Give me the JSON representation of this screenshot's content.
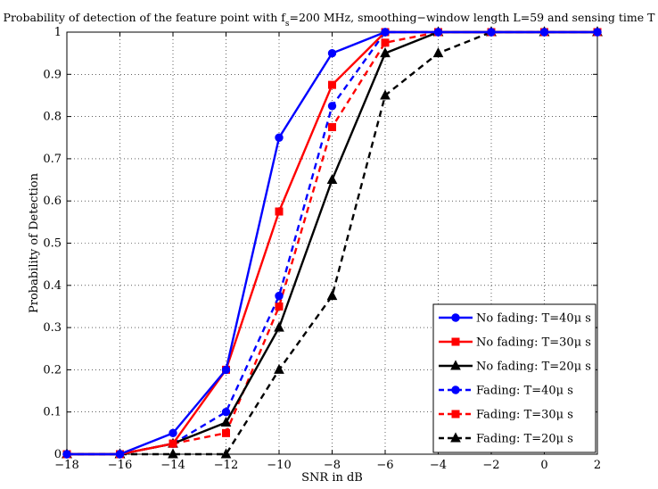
{
  "chart_data": {
    "type": "line",
    "title": "Probability of detection of the feature point with f",
    "title_subscript": "s",
    "title_rest": "=200 MHz, smoothing−window length L=59 and sensing time T",
    "xlabel": "SNR in dB",
    "ylabel": "Probability of Detection",
    "xlim": [
      -18,
      2
    ],
    "ylim": [
      0,
      1
    ],
    "xticks": [
      -18,
      -16,
      -14,
      -12,
      -10,
      -8,
      -6,
      -4,
      -2,
      0,
      2
    ],
    "xtick_labels": [
      "−18",
      "−16",
      "−14",
      "−12",
      "−10",
      "−8",
      "−6",
      "−4",
      "−2",
      "0",
      "2"
    ],
    "yticks": [
      0,
      0.1,
      0.2,
      0.3,
      0.4,
      0.5,
      0.6,
      0.7,
      0.8,
      0.9,
      1
    ],
    "ytick_labels": [
      "0",
      "0.1",
      "0.2",
      "0.3",
      "0.4",
      "0.5",
      "0.6",
      "0.7",
      "0.8",
      "0.9",
      "1"
    ],
    "grid": true,
    "legend_position": "bottom-right",
    "x": [
      -18,
      -16,
      -14,
      -12,
      -10,
      -8,
      -6,
      -4,
      -2,
      0,
      2
    ],
    "series": [
      {
        "name": "No fading: T=40μ s",
        "color": "#0000ff",
        "dash": "solid",
        "marker": "circle",
        "values": [
          0,
          0,
          0.05,
          0.2,
          0.75,
          0.95,
          1,
          1,
          1,
          1,
          1
        ]
      },
      {
        "name": "No fading: T=30μ s",
        "color": "#ff0000",
        "dash": "solid",
        "marker": "square",
        "values": [
          0,
          0,
          0.025,
          0.2,
          0.575,
          0.875,
          1,
          1,
          1,
          1,
          1
        ]
      },
      {
        "name": "No fading: T=20μ s",
        "color": "#000000",
        "dash": "solid",
        "marker": "triangle",
        "values": [
          0,
          0,
          0.025,
          0.075,
          0.3,
          0.65,
          0.95,
          1,
          1,
          1,
          1
        ]
      },
      {
        "name": "Fading: T=40μ s",
        "color": "#0000ff",
        "dash": "dashed",
        "marker": "circle",
        "values": [
          0,
          0,
          0.025,
          0.1,
          0.375,
          0.825,
          1,
          1,
          1,
          1,
          1
        ]
      },
      {
        "name": "Fading: T=30μ s",
        "color": "#ff0000",
        "dash": "dashed",
        "marker": "square",
        "values": [
          0,
          0,
          0.025,
          0.05,
          0.35,
          0.775,
          0.975,
          1,
          1,
          1,
          1
        ]
      },
      {
        "name": "Fading: T=20μ s",
        "color": "#000000",
        "dash": "dashed",
        "marker": "triangle",
        "values": [
          0,
          0,
          0,
          0,
          0.2,
          0.375,
          0.85,
          0.95,
          1,
          1,
          1
        ]
      }
    ]
  }
}
